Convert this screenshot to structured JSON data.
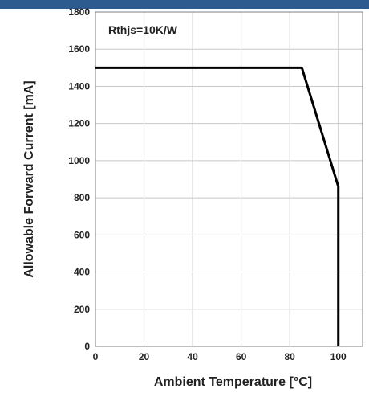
{
  "chart_data": {
    "type": "line",
    "title": "",
    "xlabel": "Ambient Temperature [°C]",
    "ylabel": "Allowable Forward Current [mA]",
    "annotation": "Rthjs=10K/W",
    "xlim": [
      0,
      110
    ],
    "ylim": [
      0,
      1800
    ],
    "x_ticks": [
      0,
      20,
      40,
      60,
      80,
      100
    ],
    "y_ticks": [
      0,
      200,
      400,
      600,
      800,
      1000,
      1200,
      1400,
      1600,
      1800
    ],
    "grid": true,
    "legend": "none",
    "series": [
      {
        "x": [
          0,
          85,
          100,
          100
        ],
        "y": [
          1500,
          1500,
          860,
          0
        ]
      }
    ],
    "colors": {
      "line": "#000000",
      "grid": "#c8c8c8",
      "header": "#2e5b8f",
      "axis": "#7f7f7f"
    }
  }
}
